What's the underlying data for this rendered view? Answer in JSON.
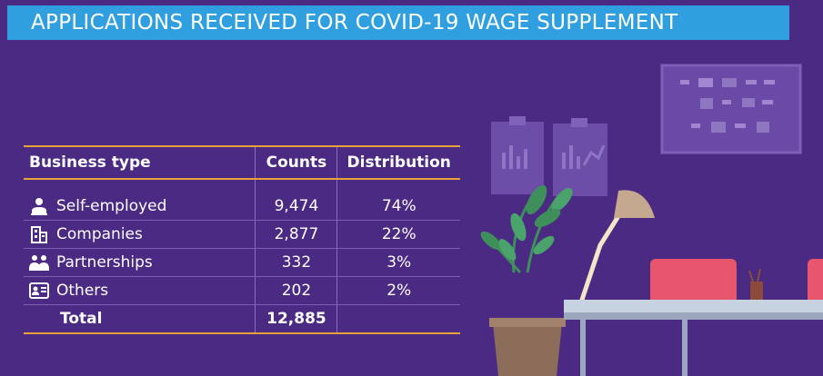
{
  "title": "APPLICATIONS RECEIVED FOR COVID-19 WAGE SUPPLEMENT",
  "table": {
    "headers": [
      "Business type",
      "Counts",
      "Distribution"
    ],
    "rows": [
      {
        "icon": "person-icon",
        "type": "Self-employed",
        "count": "9,474",
        "dist": "74%"
      },
      {
        "icon": "building-icon",
        "type": "Companies",
        "count": "2,877",
        "dist": "22%"
      },
      {
        "icon": "people-group-icon",
        "type": "Partnerships",
        "count": "332",
        "dist": "3%"
      },
      {
        "icon": "id-card-icon",
        "type": "Others",
        "count": "202",
        "dist": "2%"
      }
    ],
    "total": {
      "label": "Total",
      "count": "12,885",
      "dist": ""
    }
  },
  "colors": {
    "background": "#4a2a82",
    "title_bar": "#2f9fe0",
    "table_rule": "#e8a23a",
    "chair": "#e8566e"
  }
}
